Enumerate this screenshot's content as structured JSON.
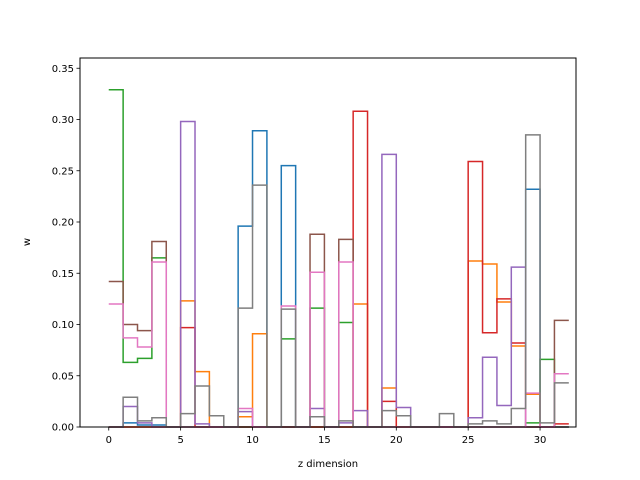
{
  "chart_data": {
    "type": "line",
    "step": "post",
    "title": "",
    "xlabel": "z dimension",
    "ylabel": "w",
    "xlim": [
      -2,
      32.5
    ],
    "ylim": [
      0,
      0.36
    ],
    "x_ticks": [
      0,
      5,
      10,
      15,
      20,
      25,
      30
    ],
    "y_ticks": [
      0.0,
      0.05,
      0.1,
      0.15,
      0.2,
      0.25,
      0.3,
      0.35
    ],
    "grid": false,
    "legend": "none",
    "x": [
      0,
      1,
      2,
      3,
      4,
      5,
      6,
      7,
      8,
      9,
      10,
      11,
      12,
      13,
      14,
      15,
      16,
      17,
      18,
      19,
      20,
      21,
      22,
      23,
      24,
      25,
      26,
      27,
      28,
      29,
      30,
      31
    ],
    "series": [
      {
        "color": "#1f77b4",
        "values": [
          0,
          0.004,
          0.002,
          0.002,
          0,
          0,
          0,
          0,
          0,
          0.196,
          0.289,
          0,
          0.255,
          0,
          0,
          0,
          0,
          0,
          0,
          0,
          0,
          0,
          0,
          0,
          0,
          0,
          0,
          0,
          0,
          0.232,
          0,
          0
        ]
      },
      {
        "color": "#ff7f0e",
        "values": [
          0,
          0,
          0,
          0,
          0,
          0.123,
          0.054,
          0,
          0,
          0.01,
          0.091,
          0,
          0,
          0,
          0,
          0,
          0,
          0.12,
          0,
          0.038,
          0,
          0,
          0,
          0,
          0,
          0.162,
          0.159,
          0.122,
          0.079,
          0.032,
          0,
          0
        ]
      },
      {
        "color": "#2ca02c",
        "values": [
          0.329,
          0.063,
          0.067,
          0.165,
          0,
          0,
          0,
          0,
          0,
          0,
          0,
          0,
          0.086,
          0,
          0.116,
          0,
          0.102,
          0,
          0,
          0,
          0,
          0,
          0,
          0,
          0,
          0,
          0,
          0,
          0,
          0.004,
          0.066,
          0
        ]
      },
      {
        "color": "#d62728",
        "values": [
          0,
          0,
          0,
          0,
          0,
          0.097,
          0,
          0,
          0,
          0,
          0,
          0,
          0,
          0,
          0,
          0,
          0,
          0.308,
          0,
          0.025,
          0,
          0,
          0,
          0,
          0,
          0.259,
          0.092,
          0.125,
          0.082,
          0,
          0,
          0.003
        ]
      },
      {
        "color": "#9467bd",
        "values": [
          0,
          0.02,
          0.004,
          0,
          0,
          0.298,
          0.003,
          0,
          0,
          0.015,
          0,
          0,
          0,
          0,
          0.018,
          0,
          0.004,
          0.016,
          0,
          0.266,
          0.019,
          0,
          0,
          0,
          0,
          0.009,
          0.068,
          0.021,
          0.156,
          0,
          0,
          0
        ]
      },
      {
        "color": "#8c564b",
        "values": [
          0.142,
          0.1,
          0.094,
          0.181,
          0,
          0,
          0,
          0,
          0,
          0,
          0,
          0,
          0,
          0,
          0.188,
          0,
          0.183,
          0,
          0,
          0,
          0,
          0,
          0,
          0,
          0,
          0,
          0,
          0,
          0,
          0,
          0,
          0.104
        ]
      },
      {
        "color": "#e377c2",
        "values": [
          0.12,
          0.087,
          0.078,
          0.161,
          0,
          0,
          0,
          0,
          0,
          0.018,
          0,
          0,
          0.118,
          0,
          0.151,
          0,
          0.161,
          0,
          0,
          0,
          0,
          0,
          0,
          0,
          0,
          0,
          0,
          0,
          0,
          0.033,
          0,
          0.052
        ]
      },
      {
        "color": "#7f7f7f",
        "values": [
          0,
          0.029,
          0.006,
          0.009,
          0,
          0.013,
          0.04,
          0.011,
          0,
          0.116,
          0.236,
          0,
          0.115,
          0,
          0.01,
          0,
          0.006,
          0,
          0,
          0.016,
          0.011,
          0,
          0,
          0.013,
          0,
          0.003,
          0.006,
          0.003,
          0.018,
          0.285,
          0.004,
          0.043
        ]
      }
    ]
  }
}
